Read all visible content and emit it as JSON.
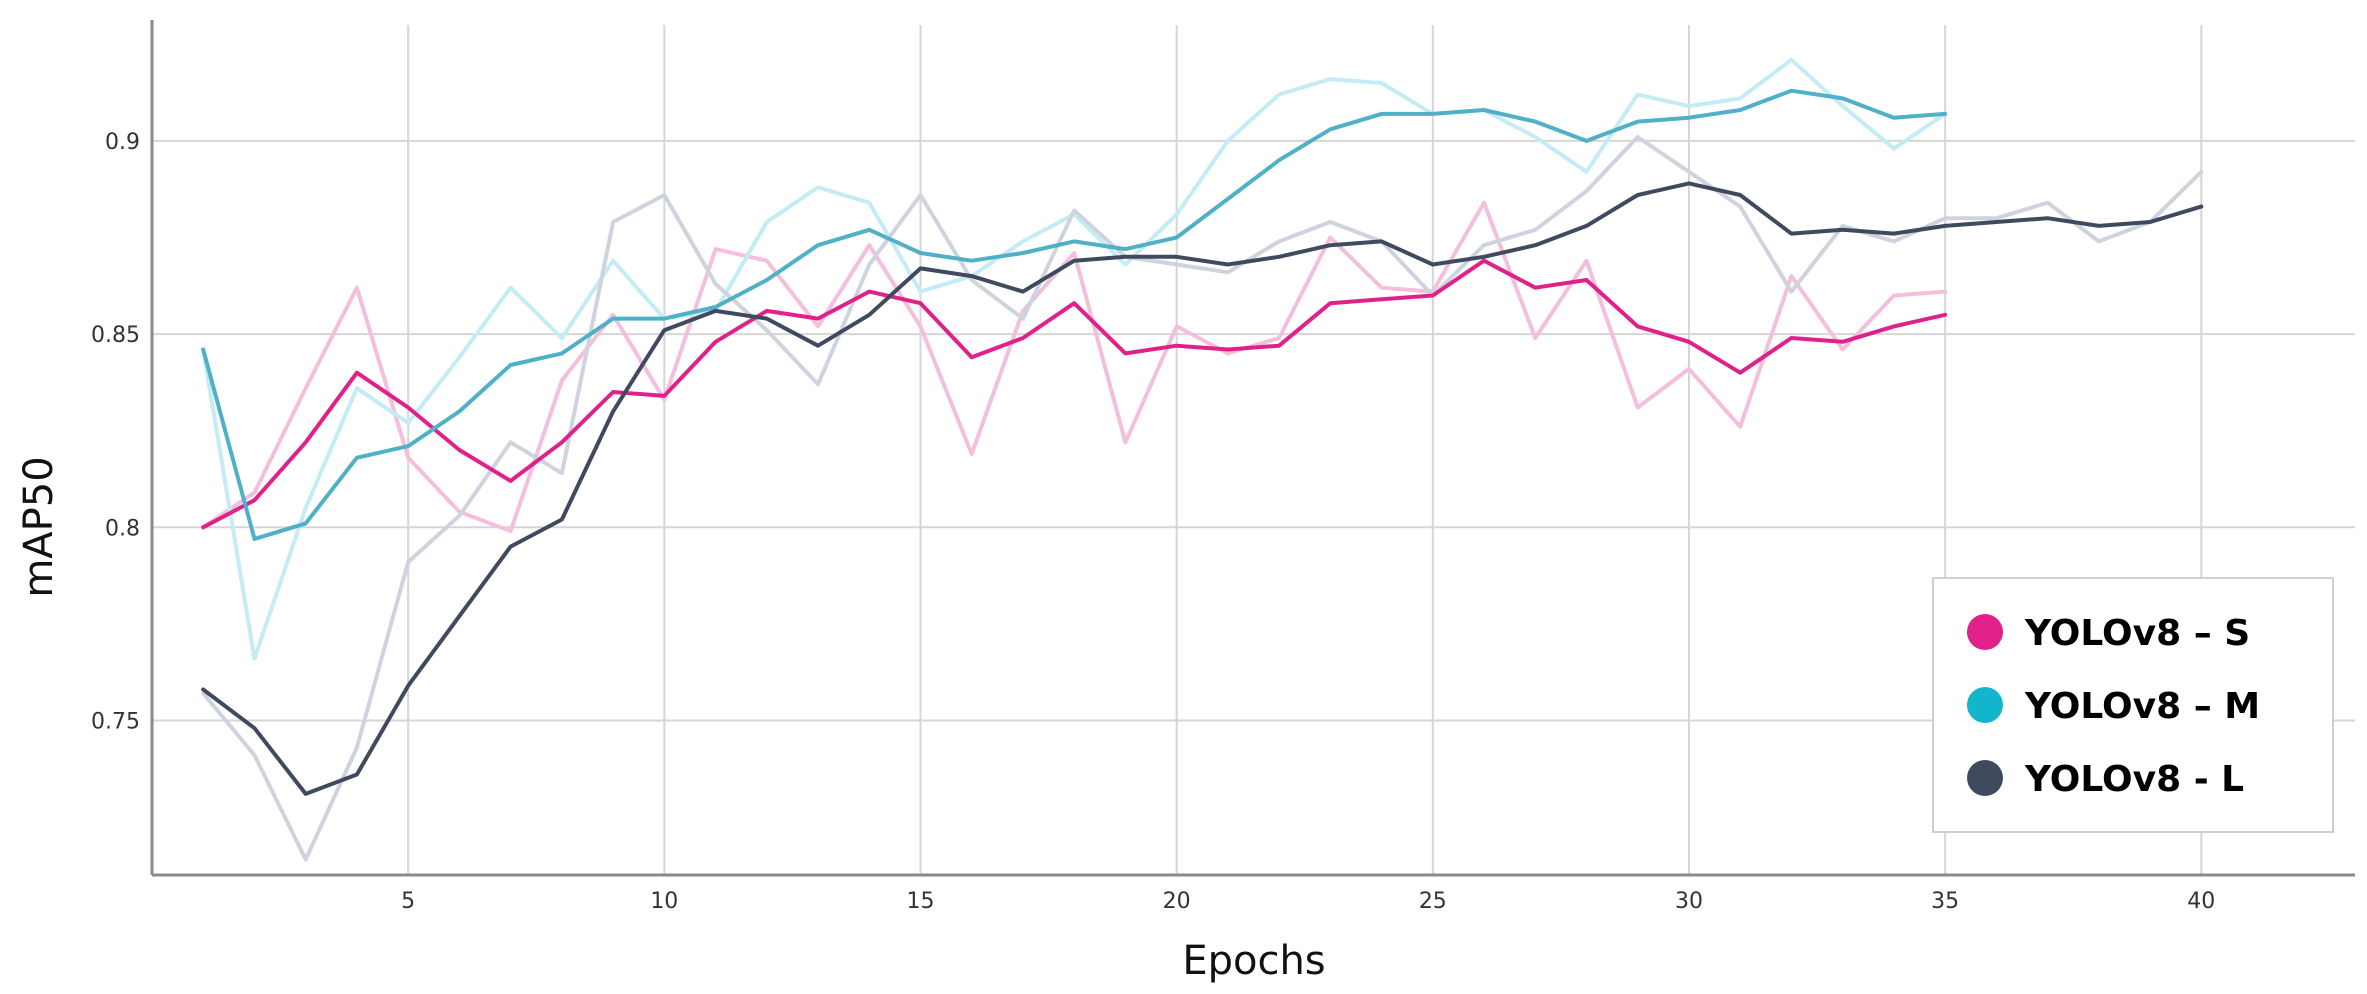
{
  "chart_data": {
    "type": "line",
    "xlabel": "Epochs",
    "ylabel": "mAP50",
    "xlim": [
      0,
      43
    ],
    "ylim": [
      0.71,
      0.93
    ],
    "x_ticks": [
      5,
      10,
      15,
      20,
      25,
      30,
      35,
      40
    ],
    "y_ticks": [
      0.75,
      0.8,
      0.85,
      0.9
    ],
    "x_tick_labels": [
      "5",
      "10",
      "15",
      "20",
      "25",
      "30",
      "35",
      "40"
    ],
    "y_tick_labels": [
      "0.75",
      "0.8",
      "0.85",
      "0.9"
    ],
    "grid": true,
    "legend_position": "bottom-right",
    "series": [
      {
        "name": "YOLOv8 – S",
        "color": "#e0218a",
        "raw_color": "#f4bfdc",
        "x": [
          1,
          2,
          3,
          4,
          5,
          6,
          7,
          8,
          9,
          10,
          11,
          12,
          13,
          14,
          15,
          16,
          17,
          18,
          19,
          20,
          21,
          22,
          23,
          24,
          25,
          26,
          27,
          28,
          29,
          30,
          31,
          32,
          33,
          34,
          35
        ],
        "values": [
          0.8,
          0.807,
          0.822,
          0.84,
          0.831,
          0.82,
          0.812,
          0.822,
          0.835,
          0.834,
          0.848,
          0.856,
          0.854,
          0.861,
          0.858,
          0.844,
          0.849,
          0.858,
          0.845,
          0.847,
          0.846,
          0.847,
          0.858,
          0.859,
          0.86,
          0.869,
          0.862,
          0.864,
          0.852,
          0.848,
          0.84,
          0.849,
          0.848,
          0.852,
          0.855
        ],
        "raw": [
          0.8,
          0.809,
          0.836,
          0.862,
          0.818,
          0.804,
          0.799,
          0.838,
          0.855,
          0.833,
          0.872,
          0.869,
          0.852,
          0.873,
          0.852,
          0.819,
          0.856,
          0.871,
          0.822,
          0.852,
          0.845,
          0.849,
          0.875,
          0.862,
          0.861,
          0.884,
          0.849,
          0.869,
          0.831,
          0.841,
          0.826,
          0.865,
          0.846,
          0.86,
          0.861
        ]
      },
      {
        "name": "YOLOv8 – M",
        "color": "#4fb0c8",
        "raw_color": "#c3ecf5",
        "x": [
          1,
          2,
          3,
          4,
          5,
          6,
          7,
          8,
          9,
          10,
          11,
          12,
          13,
          14,
          15,
          16,
          17,
          18,
          19,
          20,
          21,
          22,
          23,
          24,
          25,
          26,
          27,
          28,
          29,
          30,
          31,
          32,
          33,
          34,
          35
        ],
        "values": [
          0.846,
          0.797,
          0.801,
          0.818,
          0.821,
          0.83,
          0.842,
          0.845,
          0.854,
          0.854,
          0.857,
          0.864,
          0.873,
          0.877,
          0.871,
          0.869,
          0.871,
          0.874,
          0.872,
          0.875,
          0.885,
          0.895,
          0.903,
          0.907,
          0.907,
          0.908,
          0.905,
          0.9,
          0.905,
          0.906,
          0.908,
          0.913,
          0.911,
          0.906,
          0.907
        ],
        "raw": [
          0.846,
          0.766,
          0.805,
          0.836,
          0.827,
          0.844,
          0.862,
          0.849,
          0.869,
          0.854,
          0.856,
          0.879,
          0.888,
          0.884,
          0.861,
          0.865,
          0.874,
          0.881,
          0.868,
          0.881,
          0.9,
          0.912,
          0.916,
          0.915,
          0.907,
          0.908,
          0.901,
          0.892,
          0.912,
          0.909,
          0.911,
          0.921,
          0.909,
          0.898,
          0.907
        ]
      },
      {
        "name": "YOLOv8 - L",
        "color": "#3f4a5f",
        "raw_color": "#cfd3de",
        "x": [
          1,
          2,
          3,
          4,
          5,
          6,
          7,
          8,
          9,
          10,
          11,
          12,
          13,
          14,
          15,
          16,
          17,
          18,
          19,
          20,
          21,
          22,
          23,
          24,
          25,
          26,
          27,
          28,
          29,
          30,
          31,
          32,
          33,
          34,
          35,
          36,
          37,
          38,
          39,
          40
        ],
        "values": [
          0.758,
          0.748,
          0.731,
          0.736,
          0.759,
          0.777,
          0.795,
          0.802,
          0.83,
          0.851,
          0.856,
          0.854,
          0.847,
          0.855,
          0.867,
          0.865,
          0.861,
          0.869,
          0.87,
          0.87,
          0.868,
          0.87,
          0.873,
          0.874,
          0.868,
          0.87,
          0.873,
          0.878,
          0.886,
          0.889,
          0.886,
          0.876,
          0.877,
          0.876,
          0.878,
          0.879,
          0.88,
          0.878,
          0.879,
          0.883
        ],
        "raw": [
          0.757,
          0.741,
          0.714,
          0.743,
          0.791,
          0.803,
          0.822,
          0.814,
          0.879,
          0.886,
          0.863,
          0.851,
          0.837,
          0.868,
          0.886,
          0.864,
          0.854,
          0.882,
          0.87,
          0.868,
          0.866,
          0.874,
          0.879,
          0.874,
          0.86,
          0.873,
          0.877,
          0.887,
          0.901,
          0.892,
          0.883,
          0.861,
          0.878,
          0.874,
          0.88,
          0.88,
          0.884,
          0.874,
          0.879,
          0.892
        ]
      }
    ]
  }
}
